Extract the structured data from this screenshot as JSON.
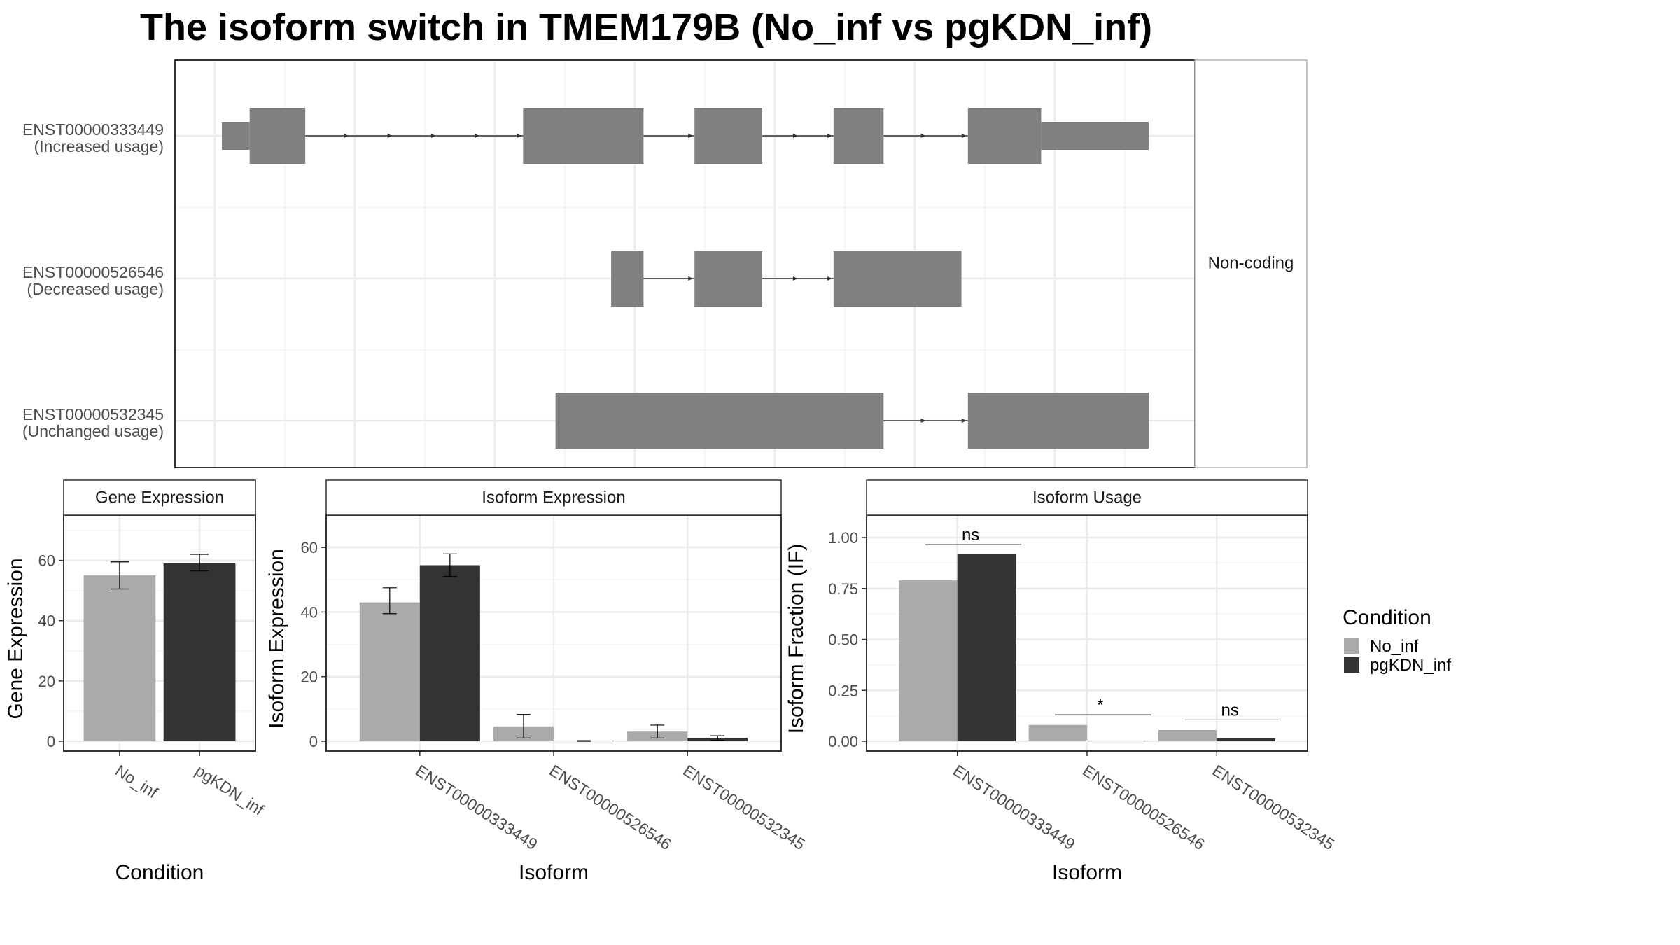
{
  "title": "The isoform switch in TMEM179B (No_inf vs pgKDN_inf)",
  "colors": {
    "no_inf": "#aaaaaa",
    "pgkdn_inf": "#333333",
    "exon": "#808080"
  },
  "transcripts": {
    "strip_label": "Non-coding",
    "items": [
      {
        "id": "ENST00000333449",
        "note": "(Increased usage)",
        "utr": [
          [
            0,
            0.03
          ],
          [
            0.884,
            1.0
          ]
        ],
        "cds": [
          [
            0.03,
            0.09
          ],
          [
            0.325,
            0.455
          ],
          [
            0.51,
            0.583
          ],
          [
            0.66,
            0.714
          ],
          [
            0.805,
            0.884
          ]
        ]
      },
      {
        "id": "ENST00000526546",
        "note": "(Decreased usage)",
        "utr": [],
        "cds": [
          [
            0.42,
            0.455
          ],
          [
            0.51,
            0.583
          ],
          [
            0.66,
            0.798
          ]
        ]
      },
      {
        "id": "ENST00000532345",
        "note": "(Unchanged usage)",
        "utr": [],
        "cds": [
          [
            0.36,
            0.714
          ],
          [
            0.805,
            1.0
          ]
        ]
      }
    ]
  },
  "legend": {
    "title": "Condition",
    "entries": [
      {
        "label": "No_inf",
        "color": "#aaaaaa"
      },
      {
        "label": "pgKDN_inf",
        "color": "#333333"
      }
    ]
  },
  "chart_data": [
    {
      "type": "bar",
      "title": "Gene Expression",
      "xlabel": "Condition",
      "ylabel": "Gene Expression",
      "ylim": [
        0,
        75
      ],
      "yticks": [
        0,
        20,
        40,
        60
      ],
      "categories": [
        "No_inf",
        "pgKDN_inf"
      ],
      "values": [
        55,
        59
      ],
      "errors": [
        [
          50.5,
          59.5
        ],
        [
          56.5,
          62
        ]
      ]
    },
    {
      "type": "bar",
      "title": "Isoform Expression",
      "xlabel": "Isoform",
      "ylabel": "Isoform Expression",
      "ylim": [
        0,
        70
      ],
      "yticks": [
        0,
        20,
        40,
        60
      ],
      "categories": [
        "ENST00000333449",
        "ENST00000526546",
        "ENST00000532345"
      ],
      "series": [
        {
          "name": "No_inf",
          "values": [
            43,
            4.6,
            3
          ],
          "errors": [
            [
              39.5,
              47.5
            ],
            [
              1,
              8.3
            ],
            [
              1,
              5
            ]
          ]
        },
        {
          "name": "pgKDN_inf",
          "values": [
            54.5,
            0.1,
            1
          ],
          "errors": [
            [
              51,
              58
            ],
            [
              0,
              0.2
            ],
            [
              0.3,
              1.7
            ]
          ]
        }
      ]
    },
    {
      "type": "bar",
      "title": "Isoform Usage",
      "xlabel": "Isoform",
      "ylabel": "Isoform Fraction (IF)",
      "ylim": [
        0,
        1.11
      ],
      "yticks": [
        "0.00",
        "0.25",
        "0.50",
        "0.75",
        "1.00"
      ],
      "categories": [
        "ENST00000333449",
        "ENST00000526546",
        "ENST00000532345"
      ],
      "series": [
        {
          "name": "No_inf",
          "values": [
            0.79,
            0.08,
            0.055
          ]
        },
        {
          "name": "pgKDN_inf",
          "values": [
            0.918,
            0.001,
            0.015
          ]
        }
      ],
      "significance": [
        {
          "label": "ns",
          "y": 0.965
        },
        {
          "label": "*",
          "y": 0.13
        },
        {
          "label": "ns",
          "y": 0.105
        }
      ]
    }
  ]
}
